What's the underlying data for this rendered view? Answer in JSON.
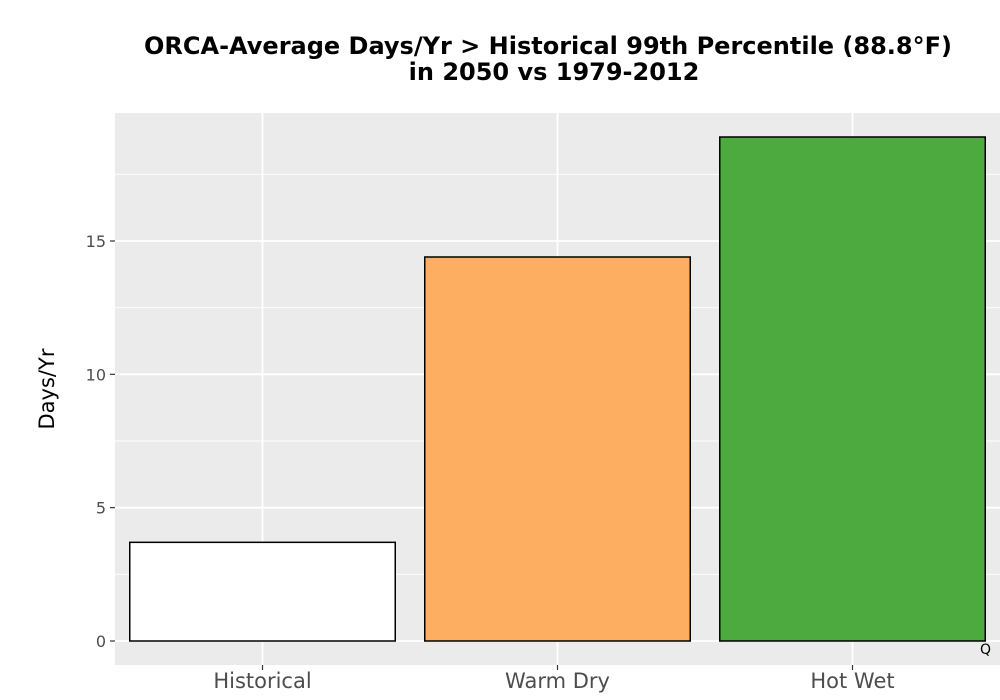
{
  "chart_data": {
    "type": "bar",
    "title_lines": [
      "ORCA-Average Days/Yr > Historical 99th Percentile (88.8°F)",
      "in 2050 vs 1979-2012"
    ],
    "xlabel": "",
    "ylabel": "Days/Yr",
    "categories": [
      "Historical",
      "Warm Dry",
      "Hot Wet"
    ],
    "values": [
      3.7,
      14.4,
      18.9
    ],
    "colors": [
      "#ffffff",
      "#fdae61",
      "#4daa3f"
    ],
    "ylim": [
      -0.9,
      19.8
    ],
    "y_ticks": [
      0,
      5,
      10,
      15
    ],
    "y_tick_labels": [
      "0",
      "5",
      "10",
      "15"
    ],
    "grid": true,
    "panel_background": "#ebebeb",
    "corner_mark": "Q"
  }
}
